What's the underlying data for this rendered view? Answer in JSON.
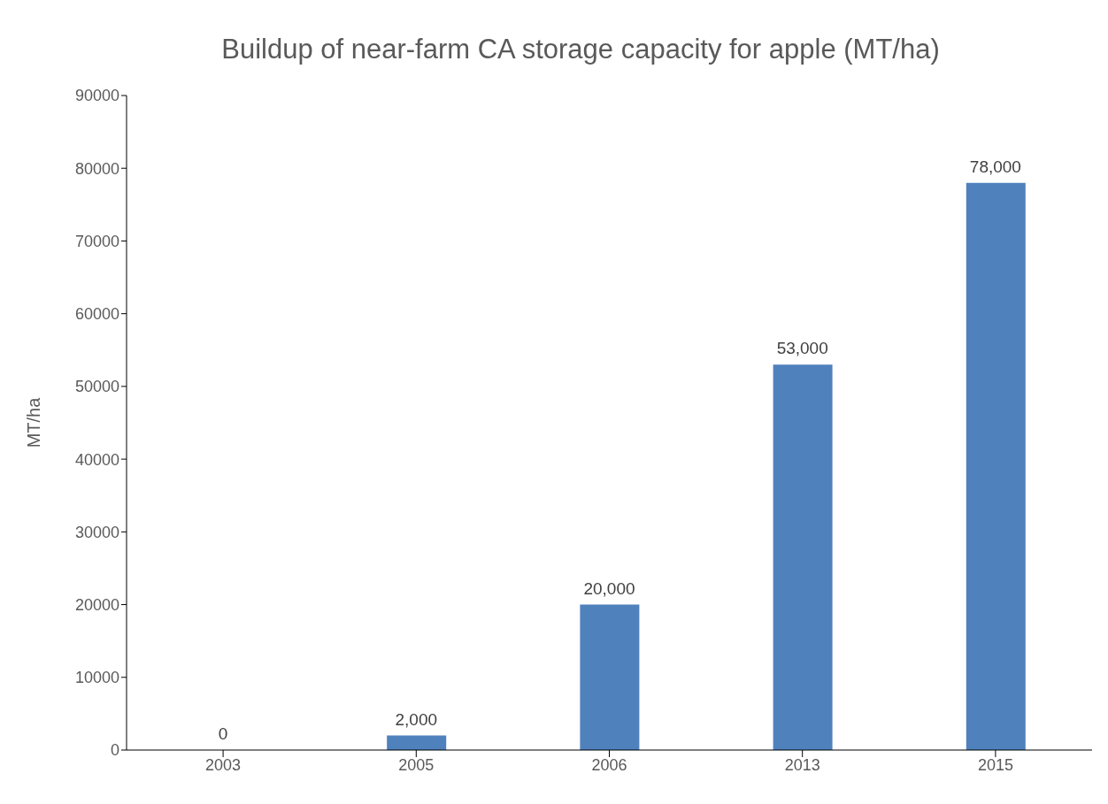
{
  "chart_data": {
    "type": "bar",
    "title": "Buildup of near-farm CA storage capacity for apple (MT/ha)",
    "ylabel": "MT/ha",
    "categories": [
      "2003",
      "2005",
      "2006",
      "2013",
      "2015"
    ],
    "values": [
      0,
      2000,
      20000,
      53000,
      78000
    ],
    "value_labels": [
      "0",
      "2,000",
      "20,000",
      "53,000",
      "78,000"
    ],
    "color": "#4f81bd",
    "ylim": [
      0,
      90000
    ],
    "yticks": [
      0,
      10000,
      20000,
      30000,
      40000,
      50000,
      60000,
      70000,
      80000,
      90000
    ],
    "grid": false
  }
}
